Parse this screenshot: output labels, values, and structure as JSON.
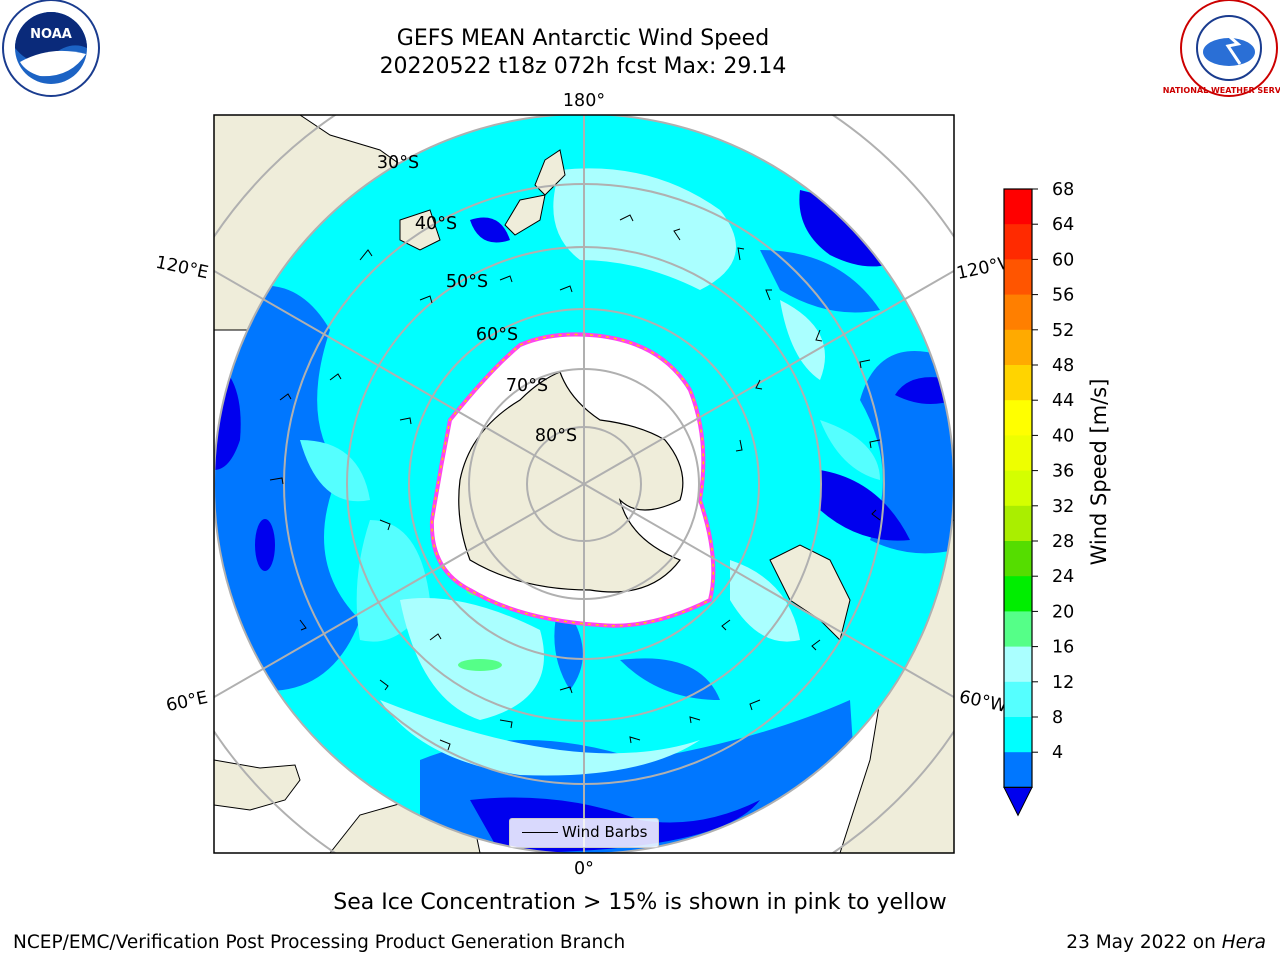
{
  "title_line1": "GEFS MEAN Antarctic Wind Speed",
  "title_line2": "20220522 t18z 072h fcst   Max: 29.14",
  "longitude_labels": {
    "top": "180°",
    "bottom": "0°",
    "upper_left": "120°E",
    "upper_right": "120°W",
    "lower_left": "60°E",
    "lower_right": "60°W"
  },
  "latitude_labels": [
    "30°S",
    "40°S",
    "50°S",
    "60°S",
    "70°S",
    "80°S"
  ],
  "colorbar": {
    "label": "Wind Speed [m/s]",
    "ticks": [
      "68",
      "64",
      "60",
      "56",
      "52",
      "48",
      "44",
      "40",
      "36",
      "32",
      "28",
      "24",
      "20",
      "16",
      "12",
      "8",
      "4"
    ],
    "colors_top_to_bottom": [
      "#ff0000",
      "#ff2a00",
      "#ff5500",
      "#ff7f00",
      "#ffaa00",
      "#ffd400",
      "#ffff00",
      "#eeff00",
      "#d4ff00",
      "#aaee00",
      "#55dd00",
      "#00ee00",
      "#55ff88",
      "#aaffff",
      "#55ffff",
      "#00ffff",
      "#0077ff"
    ],
    "extend_color": "#0000ee"
  },
  "legend": {
    "label": "Wind Barbs"
  },
  "caption": "Sea Ice Concentration > 15% is shown in pink to yellow",
  "footer": {
    "left": "NCEP/EMC/Verification Post Processing Product Generation Branch",
    "date": "23 May 2022 on",
    "host": "Hera"
  },
  "logos": {
    "left": "NOAA",
    "right_ring_text": "NATIONAL WEATHER SERVICE"
  },
  "colors": {
    "ocean_base": "#00ffff",
    "low_wind": "#0077ff",
    "lowest_wind": "#0000ee",
    "mid_wind": "#55ffff",
    "high_wind": "#aaffff",
    "land": "#efedda",
    "ice_edge": "#ff44ee"
  }
}
